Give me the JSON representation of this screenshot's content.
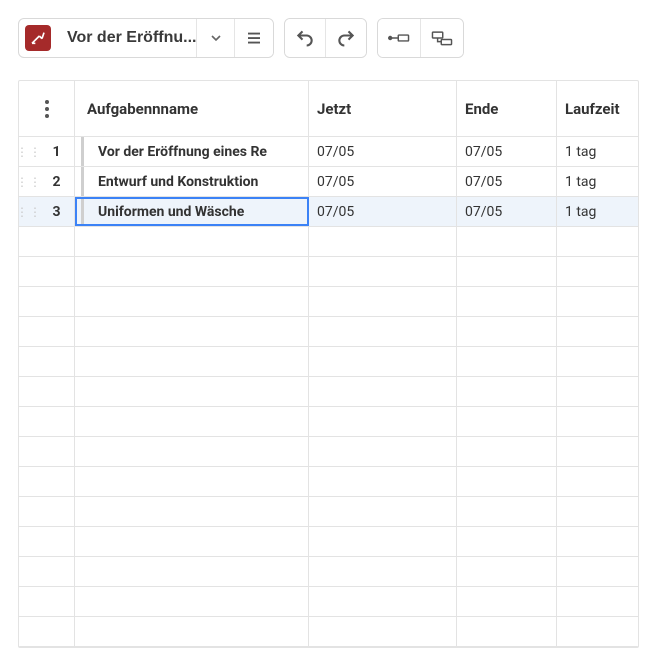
{
  "toolbar": {
    "title": "Vor der Eröffnu..."
  },
  "columns": {
    "name": "Aufgabennname",
    "jetzt": "Jetzt",
    "ende": "Ende",
    "laufzeit": "Laufzeit"
  },
  "rows": [
    {
      "num": "1",
      "name": "Vor der Eröffnung eines Re",
      "jetzt": "07/05",
      "ende": "07/05",
      "laufzeit": "1 tag",
      "selected": false
    },
    {
      "num": "2",
      "name": "Entwurf und Konstruktion",
      "jetzt": "07/05",
      "ende": "07/05",
      "laufzeit": "1 tag",
      "selected": false
    },
    {
      "num": "3",
      "name": "Uniformen und Wäsche",
      "jetzt": "07/05",
      "ende": "07/05",
      "laufzeit": "1 tag",
      "selected": true
    }
  ],
  "empty_row_count": 14,
  "colors": {
    "brand": "#a52a2a",
    "selection": "#3b82f6",
    "selection_bg": "#eef4fb",
    "border": "#e3e3e3"
  }
}
